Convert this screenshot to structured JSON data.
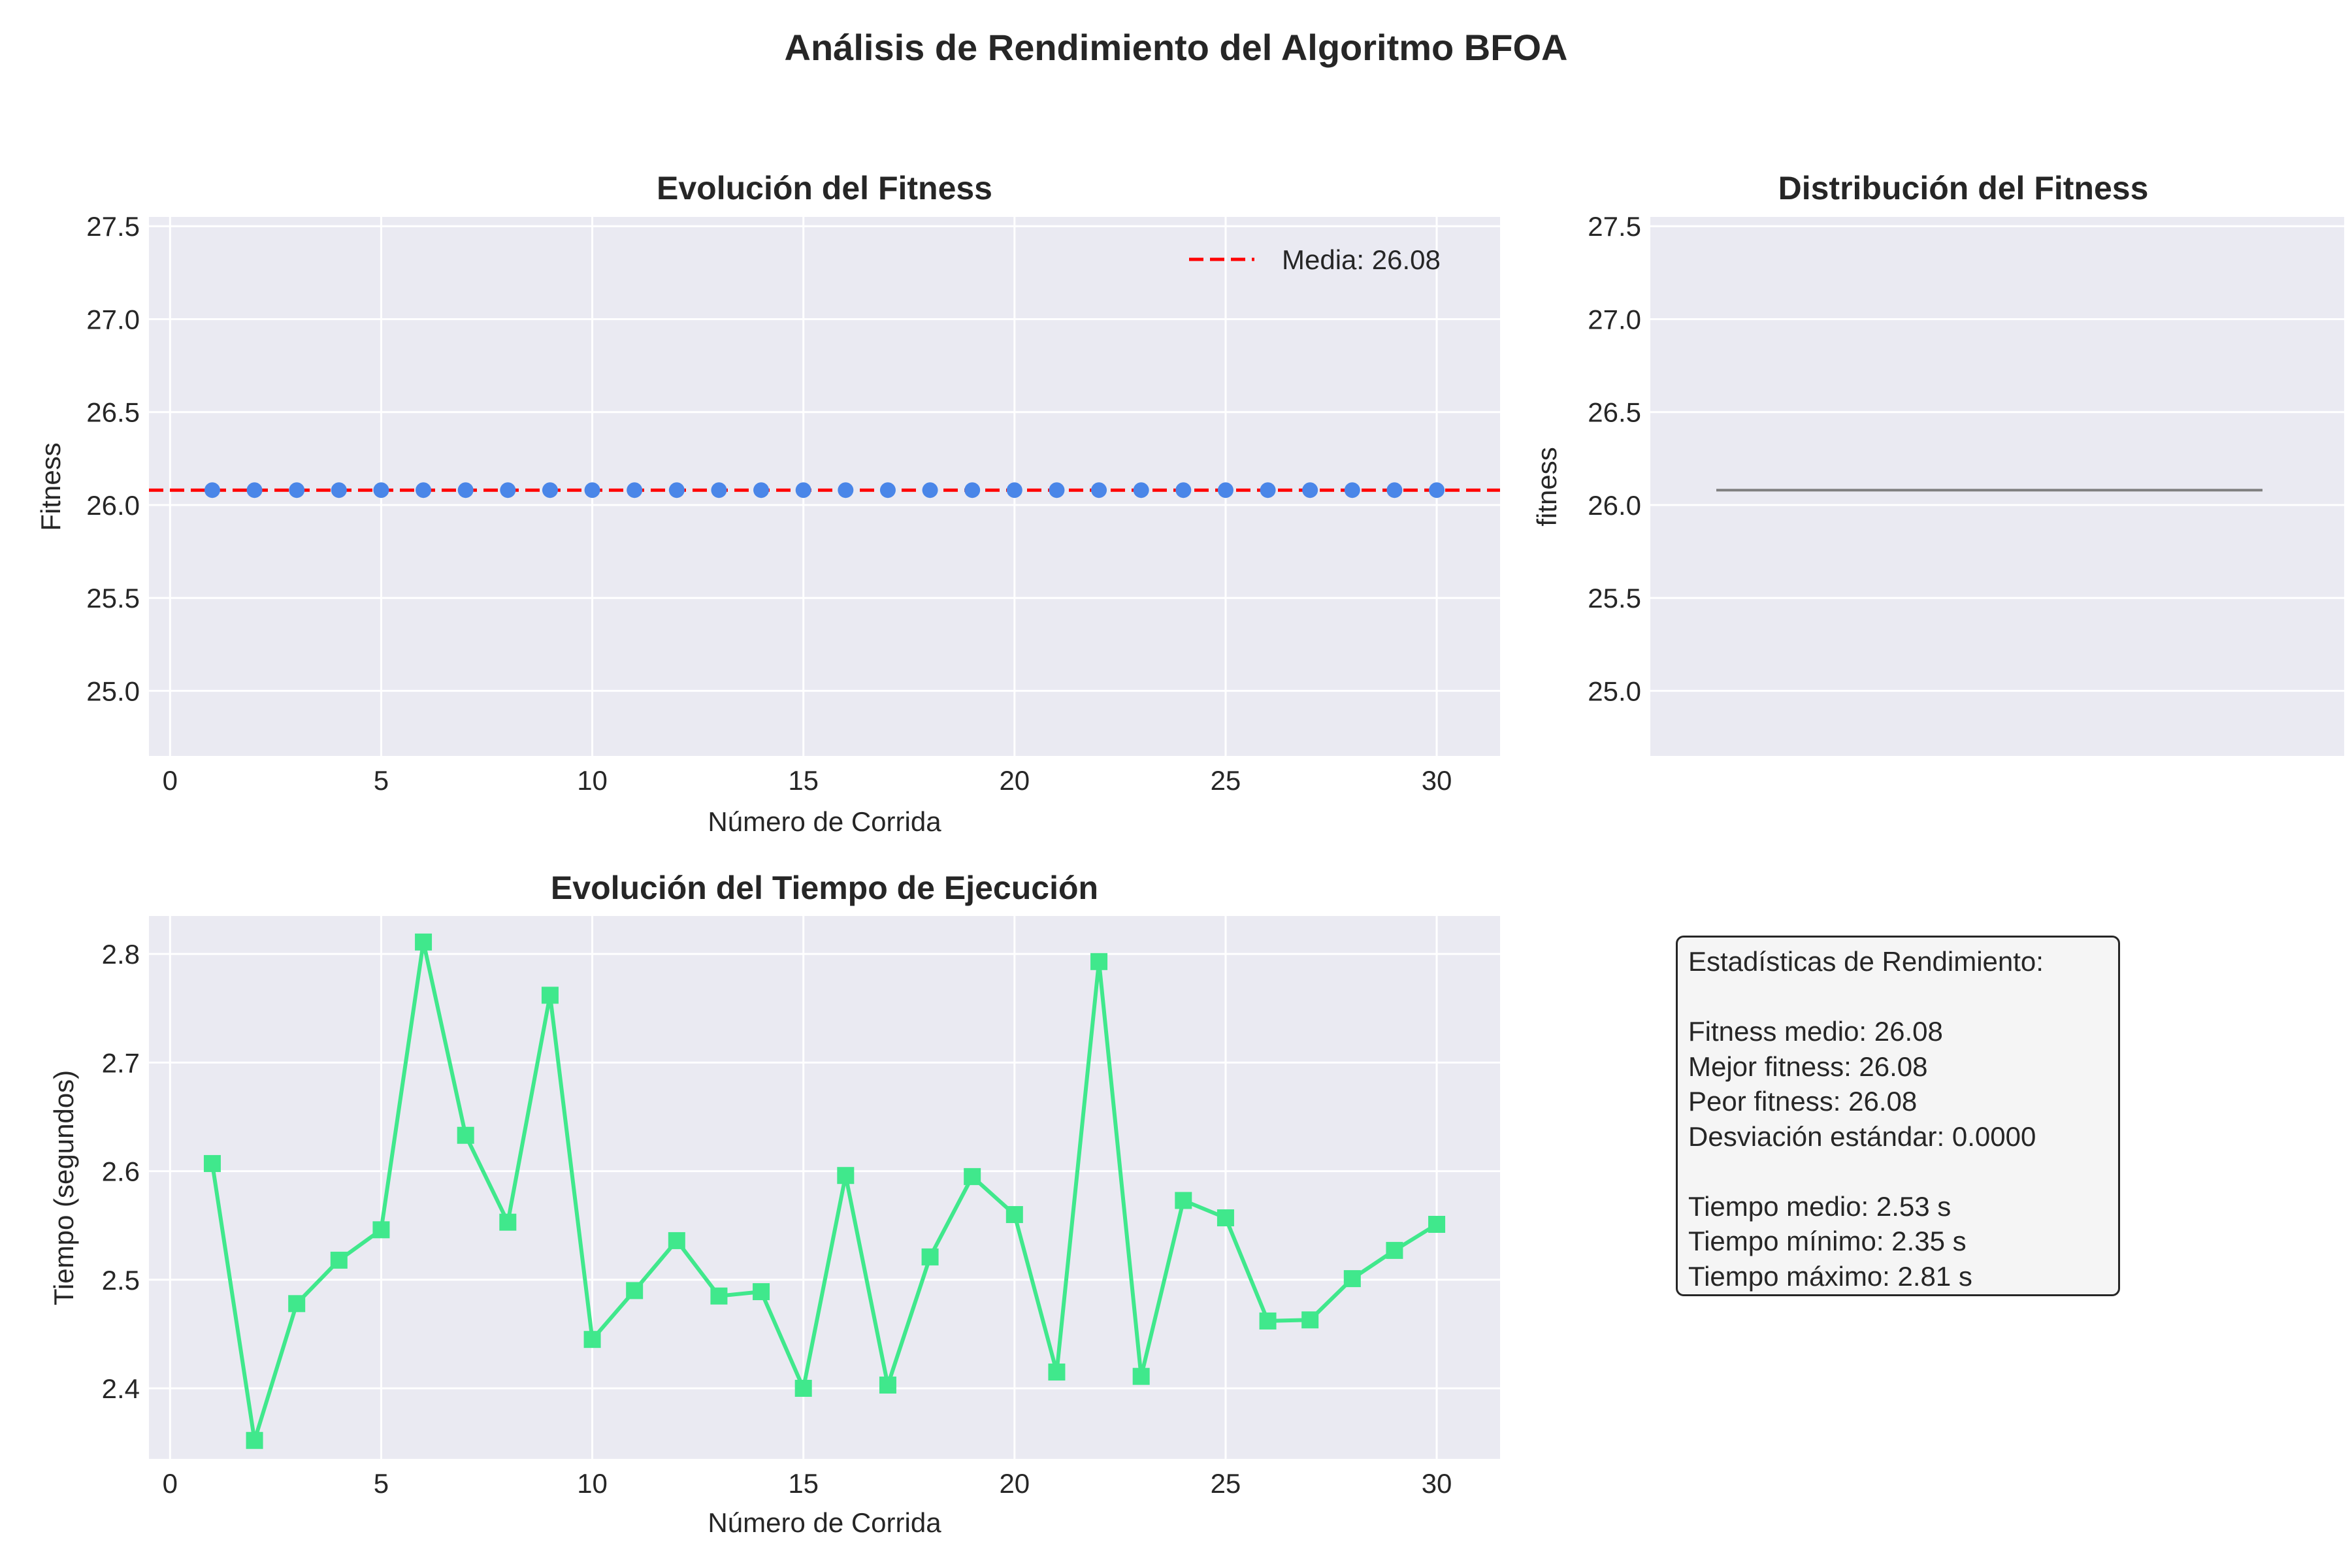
{
  "figure": {
    "title": "Análisis de Rendimiento del Algoritmo BFOA"
  },
  "colors": {
    "panel_bg": "#eaeaf2",
    "grid": "#ffffff",
    "fitness_marker": "#4a86e8",
    "mean_line": "#ff0000",
    "time_line": "#40e88c",
    "box_line": "#808080"
  },
  "chart_data": [
    {
      "type": "scatter",
      "title": "Evolución del Fitness",
      "xlabel": "Número de Corrida",
      "ylabel": "Fitness",
      "xlim": [
        -0.5,
        31.5
      ],
      "ylim": [
        24.65,
        27.55
      ],
      "xticks": [
        "0",
        "5",
        "10",
        "15",
        "20",
        "25",
        "30"
      ],
      "yticks": [
        "25.0",
        "25.5",
        "26.0",
        "26.5",
        "27.0",
        "27.5"
      ],
      "x": [
        1,
        2,
        3,
        4,
        5,
        6,
        7,
        8,
        9,
        10,
        11,
        12,
        13,
        14,
        15,
        16,
        17,
        18,
        19,
        20,
        21,
        22,
        23,
        24,
        25,
        26,
        27,
        28,
        29,
        30
      ],
      "y": [
        26.08,
        26.08,
        26.08,
        26.08,
        26.08,
        26.08,
        26.08,
        26.08,
        26.08,
        26.08,
        26.08,
        26.08,
        26.08,
        26.08,
        26.08,
        26.08,
        26.08,
        26.08,
        26.08,
        26.08,
        26.08,
        26.08,
        26.08,
        26.08,
        26.08,
        26.08,
        26.08,
        26.08,
        26.08,
        26.08
      ],
      "mean_line": {
        "value": 26.08,
        "label": "Media: 26.08"
      },
      "legend_position": "top-right",
      "grid": true
    },
    {
      "type": "box",
      "title": "Distribución del Fitness",
      "ylabel": "fitness",
      "ylim": [
        24.65,
        27.55
      ],
      "yticks": [
        "25.0",
        "25.5",
        "26.0",
        "26.5",
        "27.0",
        "27.5"
      ],
      "values": [
        26.08
      ],
      "grid": true
    },
    {
      "type": "line",
      "title": "Evolución del Tiempo de Ejecución",
      "xlabel": "Número de Corrida",
      "ylabel": "Tiempo (segundos)",
      "xlim": [
        -0.5,
        31.5
      ],
      "ylim": [
        2.335,
        2.835
      ],
      "xticks": [
        "0",
        "5",
        "10",
        "15",
        "20",
        "25",
        "30"
      ],
      "yticks": [
        "2.4",
        "2.5",
        "2.6",
        "2.7",
        "2.8"
      ],
      "x": [
        1,
        2,
        3,
        4,
        5,
        6,
        7,
        8,
        9,
        10,
        11,
        12,
        13,
        14,
        15,
        16,
        17,
        18,
        19,
        20,
        21,
        22,
        23,
        24,
        25,
        26,
        27,
        28,
        29,
        30
      ],
      "y": [
        2.607,
        2.352,
        2.478,
        2.518,
        2.546,
        2.811,
        2.633,
        2.553,
        2.762,
        2.445,
        2.49,
        2.536,
        2.485,
        2.489,
        2.4,
        2.596,
        2.403,
        2.521,
        2.595,
        2.56,
        2.415,
        2.793,
        2.411,
        2.573,
        2.557,
        2.462,
        2.463,
        2.501,
        2.527,
        2.551
      ],
      "marker": "square",
      "grid": true
    }
  ],
  "stats": {
    "title": "Estadísticas de Rendimiento:",
    "fitness_mean": "Fitness medio: 26.08",
    "fitness_best": "Mejor fitness: 26.08",
    "fitness_worst": "Peor fitness: 26.08",
    "fitness_std": "Desviación estándar: 0.0000",
    "time_mean": "Tiempo medio: 2.53 s",
    "time_min": "Tiempo mínimo: 2.35 s",
    "time_max": "Tiempo máximo: 2.81 s"
  }
}
